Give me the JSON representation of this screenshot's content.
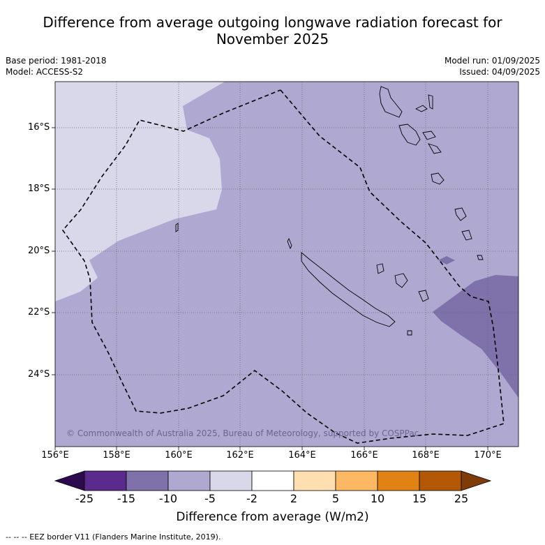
{
  "title": {
    "line1": "Difference from average outgoing longwave radiation forecast for",
    "line2": "November 2025"
  },
  "meta": {
    "base_period": "Base period: 1981-2018",
    "model": "Model: ACCESS-S2",
    "model_run": "Model run: 01/09/2025",
    "issued": "Issued: 04/09/2025"
  },
  "map": {
    "lat_ticks": [
      "16°S",
      "18°S",
      "20°S",
      "22°S",
      "24°S"
    ],
    "lon_ticks": [
      "156°E",
      "158°E",
      "160°E",
      "162°E",
      "164°E",
      "166°E",
      "168°E",
      "170°E"
    ],
    "copyright": "© Commonwealth of Australia 2025, Bureau of Meteorology, supported by COSPPac",
    "colors": {
      "lt_minus5": "#afa8d0",
      "m5_to_m2": "#d8d8ea",
      "m15_to_m10": "#7f72ab",
      "land_outline": "#000000"
    }
  },
  "colorbar": {
    "labels": [
      "-25",
      "-15",
      "-10",
      "-5",
      "-2",
      "2",
      "5",
      "10",
      "15",
      "25"
    ],
    "colors": [
      "#2d0a4e",
      "#5a2a8c",
      "#7f72ab",
      "#afa8d0",
      "#d8d8ea",
      "#ffffff",
      "#ffdfb0",
      "#fdb863",
      "#e08214",
      "#b35806",
      "#7f3b08"
    ],
    "title": "Difference from average (W/m2)"
  },
  "footer": "--  --  -- EEZ border V11 (Flanders Marine Institute, 2019)."
}
